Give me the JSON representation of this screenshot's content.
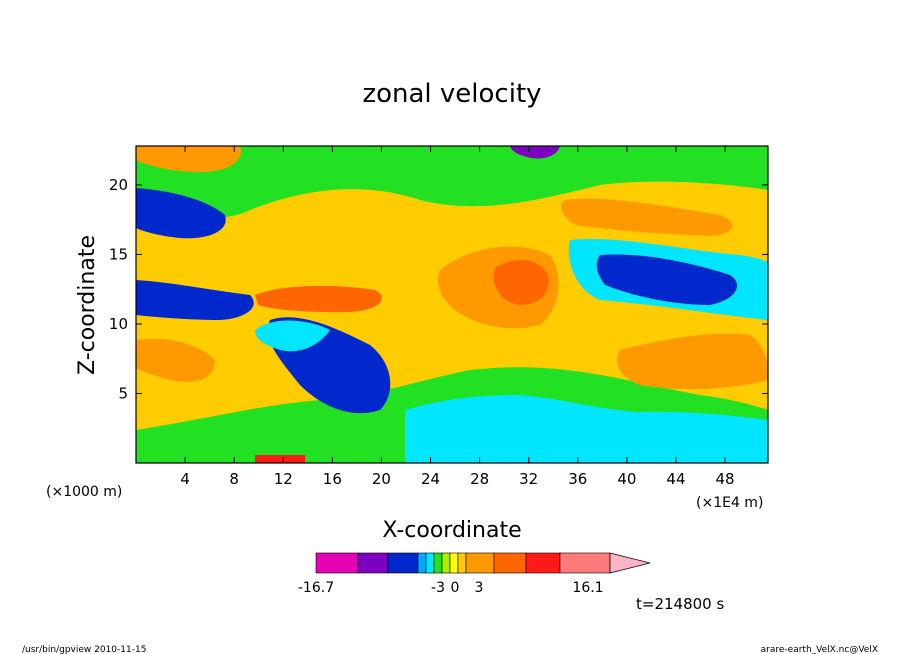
{
  "chart_data": {
    "type": "heatmap",
    "title": "zonal velocity",
    "xlabel": "X-coordinate",
    "ylabel": "Z-coordinate",
    "xunit_left": "(×1000 m)",
    "xunit_right": "(×1E4 m)",
    "xlim": [
      0,
      51.5
    ],
    "ylim": [
      0,
      22.8
    ],
    "xticks": [
      4,
      8,
      12,
      16,
      20,
      24,
      28,
      32,
      36,
      40,
      44,
      48
    ],
    "yticks": [
      5,
      10,
      15,
      20
    ],
    "time_label": "t=214800 s",
    "colorbar": {
      "min_label": "-16.7",
      "max_label": "16.1",
      "mid_labels": [
        "-3",
        "0",
        "3"
      ],
      "colors": [
        "#e600b3",
        "#7d00c2",
        "#0028cc",
        "#00aaff",
        "#00e6ff",
        "#22e022",
        "#aaee00",
        "#ffff00",
        "#ffcc00",
        "#ff9900",
        "#ff6600",
        "#ff1a1a",
        "#ff7a7a"
      ],
      "extend_color": "#ffb3c6"
    }
  },
  "footer": {
    "left": "/usr/bin/gpview  2010-11-15",
    "right": "arare-earth_VelX.nc@VelX"
  }
}
